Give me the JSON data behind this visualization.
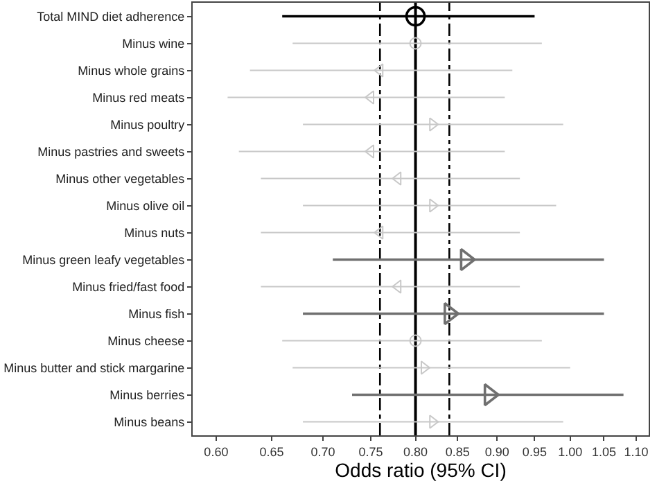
{
  "chart_data": {
    "type": "scatter",
    "orientation": "horizontal",
    "xlabel": "Odds ratio (95% CI)",
    "log": "x",
    "grid": false,
    "categories": [
      "Total MIND diet adherence",
      "Minus wine",
      "Minus whole grains",
      "Minus red meats",
      "Minus poultry",
      "Minus pastries and sweets",
      "Minus other vegetables",
      "Minus olive oil",
      "Minus nuts",
      "Minus green leafy vegetables",
      "Minus fried/fast food",
      "Minus fish",
      "Minus cheese",
      "Minus butter and stick margarine",
      "Minus berries",
      "Minus beans"
    ],
    "xlim": [
      0.58,
      1.12
    ],
    "xticks": [
      {
        "value": 0.6,
        "label": "0.60"
      },
      {
        "value": 0.65,
        "label": "0.65"
      },
      {
        "value": 0.7,
        "label": "0.70"
      },
      {
        "value": 0.75,
        "label": "0.75"
      },
      {
        "value": 0.8,
        "label": "0.80"
      },
      {
        "value": 0.85,
        "label": "0.85"
      },
      {
        "value": 0.9,
        "label": "0.90"
      },
      {
        "value": 0.95,
        "label": "0.95"
      },
      {
        "value": 1.0,
        "label": "1.00"
      },
      {
        "value": 1.05,
        "label": "1.05"
      },
      {
        "value": 1.1,
        "label": "1.10"
      }
    ],
    "series": [
      {
        "color": "#000000",
        "marker": "circle",
        "values": [
          0.8,
          null,
          null,
          null,
          null,
          null,
          null,
          null,
          null,
          null,
          null,
          null,
          null,
          null,
          null,
          null
        ],
        "errors": [
          [
            0.66,
            0.95
          ],
          null,
          null,
          null,
          null,
          null,
          null,
          null,
          null,
          null,
          null,
          null,
          null,
          null,
          null,
          null
        ]
      },
      {
        "color": "#c8c8c8",
        "marker": "circle",
        "values": [
          null,
          0.8,
          null,
          null,
          null,
          null,
          null,
          null,
          null,
          null,
          null,
          null,
          0.8,
          null,
          null,
          null
        ],
        "errors": [
          null,
          [
            0.67,
            0.96
          ],
          null,
          null,
          null,
          null,
          null,
          null,
          null,
          null,
          null,
          null,
          [
            0.66,
            0.96
          ],
          null,
          null,
          null
        ]
      },
      {
        "color": "#c8c8c8",
        "marker": "triangle",
        "values": [
          null,
          null,
          0.76,
          0.75,
          0.82,
          0.75,
          0.78,
          0.82,
          0.76,
          null,
          0.78,
          null,
          null,
          0.81,
          null,
          0.82
        ],
        "errors": [
          null,
          null,
          [
            0.63,
            0.92
          ],
          [
            0.61,
            0.91
          ],
          [
            0.68,
            0.99
          ],
          [
            0.62,
            0.91
          ],
          [
            0.64,
            0.93
          ],
          [
            0.68,
            0.98
          ],
          [
            0.64,
            0.93
          ],
          null,
          [
            0.64,
            0.93
          ],
          null,
          null,
          [
            0.67,
            1.0
          ],
          null,
          [
            0.68,
            0.99
          ]
        ]
      },
      {
        "color": "#707070",
        "marker": "triangle",
        "values": [
          null,
          null,
          null,
          null,
          null,
          null,
          null,
          null,
          null,
          0.86,
          null,
          0.84,
          null,
          null,
          0.89,
          null
        ],
        "errors": [
          null,
          null,
          null,
          null,
          null,
          null,
          null,
          null,
          null,
          [
            0.71,
            1.05
          ],
          null,
          [
            0.68,
            1.05
          ],
          null,
          null,
          [
            0.73,
            1.08
          ],
          null
        ]
      }
    ],
    "ref_lines": [
      {
        "axis": "x",
        "value": 0.8,
        "color": "#000000",
        "line_style": "solid"
      },
      {
        "axis": "x",
        "value": 0.76,
        "color": "#000000",
        "line_style": "dashed"
      },
      {
        "axis": "x",
        "value": 0.84,
        "color": "#000000",
        "line_style": "dashed"
      }
    ]
  }
}
